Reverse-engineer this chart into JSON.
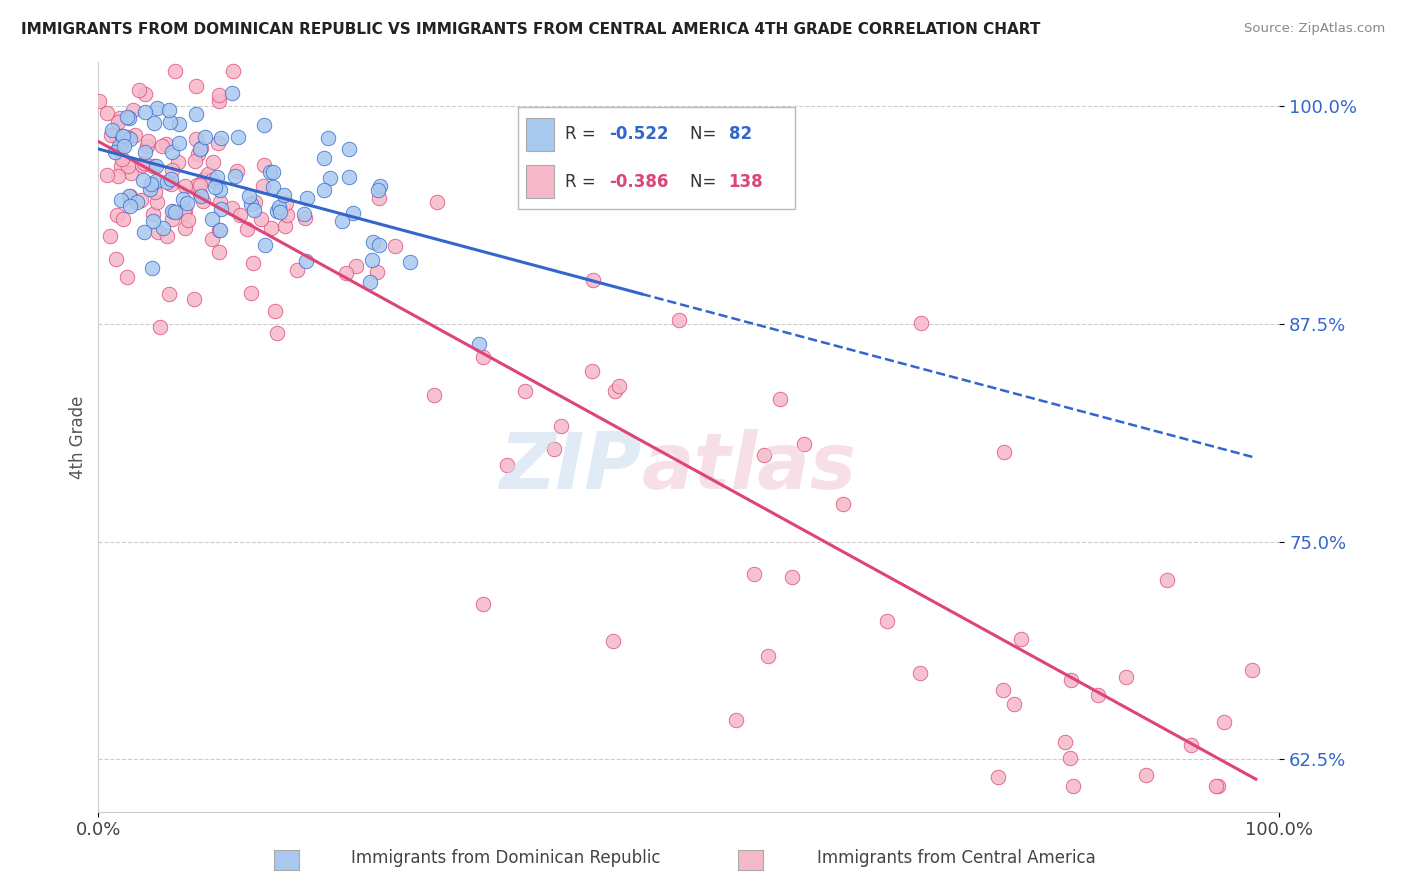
{
  "title": "IMMIGRANTS FROM DOMINICAN REPUBLIC VS IMMIGRANTS FROM CENTRAL AMERICA 4TH GRADE CORRELATION CHART",
  "source": "Source: ZipAtlas.com",
  "ylabel": "4th Grade",
  "xlim": [
    0.0,
    1.0
  ],
  "ylim": [
    0.595,
    1.025
  ],
  "yticks": [
    0.625,
    0.75,
    0.875,
    1.0
  ],
  "ytick_labels": [
    "62.5%",
    "75.0%",
    "87.5%",
    "100.0%"
  ],
  "xtick_labels": [
    "0.0%",
    "100.0%"
  ],
  "blue_color": "#A8C8EE",
  "pink_color": "#F5B8C8",
  "blue_line_color": "#3366CC",
  "pink_line_color": "#DD4477",
  "background_color": "#FFFFFF",
  "legend_r1": "-0.522",
  "legend_n1": "82",
  "legend_r2": "-0.386",
  "legend_n2": "138"
}
